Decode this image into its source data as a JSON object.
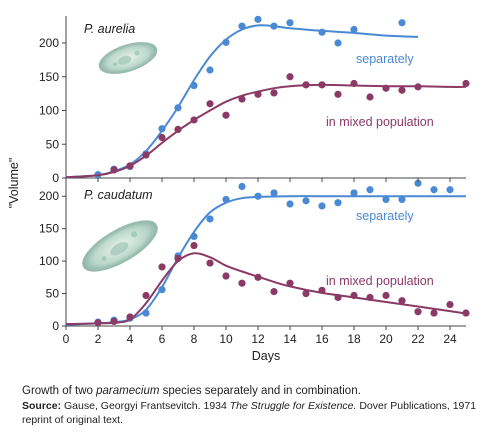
{
  "chart_data": {
    "type": "scatter",
    "ylabel": "\"Volume\"",
    "xlabel": "Days",
    "xlim": [
      0,
      25
    ],
    "x_ticks": [
      0,
      2,
      4,
      6,
      8,
      10,
      12,
      14,
      16,
      18,
      20,
      22,
      24
    ],
    "x_tick_labels": [
      "0",
      "2",
      "4",
      "6",
      "8",
      "10",
      "12",
      "14",
      "16",
      "18",
      "20",
      "22",
      "24"
    ],
    "colors": {
      "separately": "#4a8ad4",
      "mixed": "#8b3a66"
    },
    "panels": [
      {
        "species": "P. aurelia",
        "ylim": [
          0,
          240
        ],
        "y_ticks": [
          0,
          50,
          100,
          150,
          200
        ],
        "y_tick_labels": [
          "0",
          "50",
          "100",
          "150",
          "200"
        ],
        "series": [
          {
            "name": "separately",
            "points": [
              [
                2,
                5
              ],
              [
                3,
                13
              ],
              [
                4,
                17
              ],
              [
                5,
                36
              ],
              [
                6,
                73
              ],
              [
                7,
                104
              ],
              [
                8,
                137
              ],
              [
                9,
                160
              ],
              [
                10,
                201
              ],
              [
                11,
                225
              ],
              [
                12,
                235
              ],
              [
                13,
                225
              ],
              [
                14,
                230
              ],
              [
                16,
                216
              ],
              [
                17,
                200
              ],
              [
                18,
                220
              ],
              [
                21,
                230
              ]
            ],
            "curve": [
              [
                0,
                1
              ],
              [
                2,
                4
              ],
              [
                3,
                10
              ],
              [
                4,
                20
              ],
              [
                5,
                40
              ],
              [
                6,
                70
              ],
              [
                7,
                105
              ],
              [
                8,
                145
              ],
              [
                9,
                180
              ],
              [
                10,
                205
              ],
              [
                11,
                220
              ],
              [
                12,
                226
              ],
              [
                13,
                225
              ],
              [
                14,
                222
              ],
              [
                16,
                218
              ],
              [
                18,
                215
              ],
              [
                20,
                211
              ],
              [
                22,
                209
              ]
            ]
          },
          {
            "name": "in mixed population",
            "points": [
              [
                3,
                12
              ],
              [
                4,
                18
              ],
              [
                5,
                34
              ],
              [
                6,
                60
              ],
              [
                7,
                72
              ],
              [
                8,
                86
              ],
              [
                9,
                110
              ],
              [
                10,
                93
              ],
              [
                11,
                117
              ],
              [
                12,
                124
              ],
              [
                13,
                126
              ],
              [
                14,
                150
              ],
              [
                15,
                138
              ],
              [
                16,
                138
              ],
              [
                17,
                124
              ],
              [
                18,
                140
              ],
              [
                19,
                120
              ],
              [
                20,
                133
              ],
              [
                21,
                130
              ],
              [
                22,
                135
              ],
              [
                25,
                140
              ]
            ],
            "curve": [
              [
                0,
                1
              ],
              [
                2,
                4
              ],
              [
                3,
                9
              ],
              [
                4,
                18
              ],
              [
                5,
                33
              ],
              [
                6,
                52
              ],
              [
                7,
                70
              ],
              [
                8,
                86
              ],
              [
                9,
                100
              ],
              [
                10,
                113
              ],
              [
                11,
                122
              ],
              [
                12,
                128
              ],
              [
                13,
                133
              ],
              [
                14,
                136
              ],
              [
                16,
                138
              ],
              [
                18,
                137
              ],
              [
                20,
                136
              ],
              [
                22,
                136
              ],
              [
                24,
                135
              ],
              [
                25,
                135
              ]
            ]
          }
        ]
      },
      {
        "species": "P. caudatum",
        "ylim": [
          0,
          225
        ],
        "y_ticks": [
          0,
          50,
          100,
          150,
          200
        ],
        "y_tick_labels": [
          "0",
          "50",
          "100",
          "150",
          "200"
        ],
        "series": [
          {
            "name": "separately",
            "points": [
              [
                2,
                6
              ],
              [
                3,
                9
              ],
              [
                4,
                12
              ],
              [
                5,
                20
              ],
              [
                6,
                56
              ],
              [
                7,
                108
              ],
              [
                8,
                138
              ],
              [
                9,
                165
              ],
              [
                10,
                195
              ],
              [
                11,
                215
              ],
              [
                12,
                200
              ],
              [
                13,
                205
              ],
              [
                14,
                188
              ],
              [
                15,
                193
              ],
              [
                16,
                185
              ],
              [
                17,
                190
              ],
              [
                18,
                205
              ],
              [
                19,
                210
              ],
              [
                20,
                195
              ],
              [
                21,
                195
              ],
              [
                22,
                220
              ],
              [
                23,
                210
              ],
              [
                24,
                210
              ]
            ],
            "curve": [
              [
                0,
                2
              ],
              [
                2,
                4
              ],
              [
                3,
                6
              ],
              [
                4,
                10
              ],
              [
                5,
                25
              ],
              [
                6,
                60
              ],
              [
                7,
                105
              ],
              [
                8,
                145
              ],
              [
                9,
                175
              ],
              [
                10,
                190
              ],
              [
                11,
                197
              ],
              [
                12,
                199
              ],
              [
                14,
                200
              ],
              [
                16,
                200
              ],
              [
                18,
                200
              ],
              [
                20,
                200
              ],
              [
                22,
                200
              ],
              [
                24,
                200
              ],
              [
                25,
                200
              ]
            ]
          },
          {
            "name": "in mixed population",
            "points": [
              [
                2,
                5
              ],
              [
                3,
                7
              ],
              [
                4,
                14
              ],
              [
                5,
                47
              ],
              [
                6,
                91
              ],
              [
                7,
                104
              ],
              [
                8,
                124
              ],
              [
                9,
                97
              ],
              [
                10,
                77
              ],
              [
                11,
                66
              ],
              [
                12,
                75
              ],
              [
                13,
                53
              ],
              [
                14,
                66
              ],
              [
                15,
                50
              ],
              [
                16,
                55
              ],
              [
                17,
                44
              ],
              [
                18,
                47
              ],
              [
                19,
                44
              ],
              [
                20,
                47
              ],
              [
                21,
                39
              ],
              [
                22,
                22
              ],
              [
                23,
                20
              ],
              [
                24,
                33
              ],
              [
                25,
                20
              ]
            ],
            "curve": [
              [
                0,
                3
              ],
              [
                2,
                4
              ],
              [
                3,
                5
              ],
              [
                4,
                10
              ],
              [
                5,
                35
              ],
              [
                6,
                70
              ],
              [
                7,
                100
              ],
              [
                8,
                112
              ],
              [
                9,
                106
              ],
              [
                10,
                93
              ],
              [
                11,
                84
              ],
              [
                12,
                76
              ],
              [
                13,
                68
              ],
              [
                14,
                61
              ],
              [
                16,
                51
              ],
              [
                18,
                44
              ],
              [
                20,
                37
              ],
              [
                22,
                30
              ],
              [
                24,
                23
              ],
              [
                25,
                19
              ]
            ]
          }
        ]
      }
    ]
  },
  "caption": {
    "text": "Growth of two paramecium species separately and in combination.",
    "pre": "Growth of two ",
    "italic": "paramecium",
    "post": " species separately and in combination."
  },
  "source": {
    "label": "Source:",
    "pre": " Gause, Georgyi Frantsevitch. 1934 ",
    "italic": "The Struggle for Existence.",
    "post": " Dover Publications, 1971 reprint of original text."
  }
}
